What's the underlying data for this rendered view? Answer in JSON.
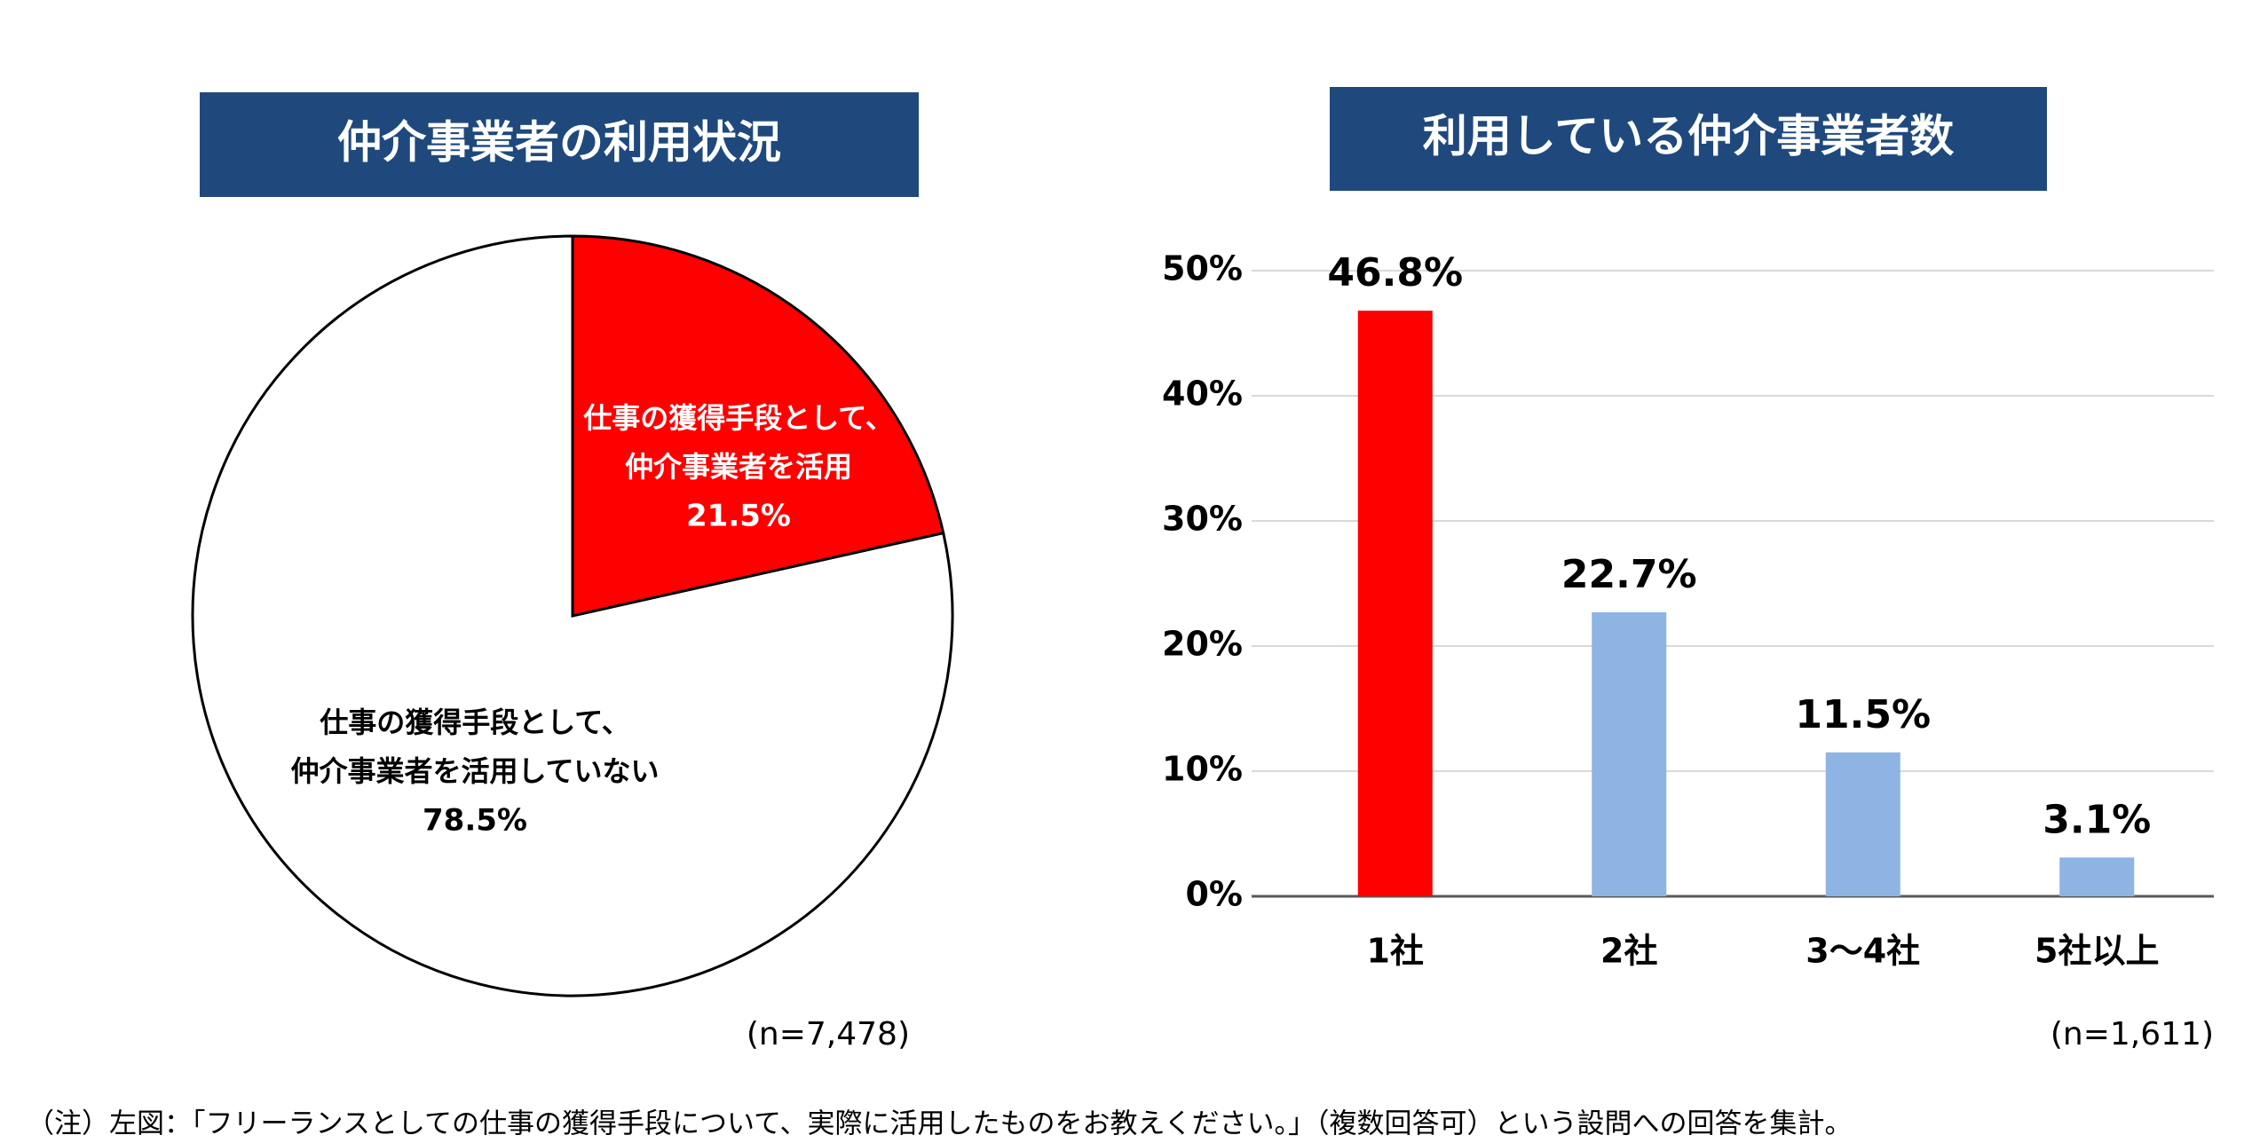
{
  "chart_data": [
    {
      "type": "pie",
      "title": "仲介事業者の利用状況",
      "labels": [
        [
          "仕事の獲得手段として、",
          "仲介事業者を活用"
        ],
        [
          "仕事の獲得手段として、",
          "仲介事業者を活用していない"
        ]
      ],
      "values": [
        21.5,
        78.5
      ],
      "value_labels": [
        "21.5%",
        "78.5%"
      ],
      "colors": [
        "#ff0000",
        "#ffffff"
      ],
      "sample_note": "(n=7,478)"
    },
    {
      "type": "bar",
      "title": "利用している仲介事業者数",
      "categories": [
        "1社",
        "2社",
        "3～4社",
        "5社以上"
      ],
      "values": [
        46.8,
        22.7,
        11.5,
        3.1
      ],
      "value_labels": [
        "46.8%",
        "22.7%",
        "11.5%",
        "3.1%"
      ],
      "colors": [
        "#ff0000",
        "#8db4e2",
        "#8db4e2",
        "#8db4e2"
      ],
      "ylim": [
        0,
        50
      ],
      "yticks": [
        {
          "value": 0,
          "label": "0%"
        },
        {
          "value": 10,
          "label": "10%"
        },
        {
          "value": 20,
          "label": "20%"
        },
        {
          "value": 30,
          "label": "30%"
        },
        {
          "value": 40,
          "label": "40%"
        },
        {
          "value": 50,
          "label": "50%"
        }
      ],
      "grid": true,
      "sample_note": "(n=1,611)"
    }
  ],
  "footnote": "（注）左図：「フリーランスとしての仕事の獲得手段について、実際に活用したものをお教えください。」（複数回答可）という設問への回答を集計。"
}
